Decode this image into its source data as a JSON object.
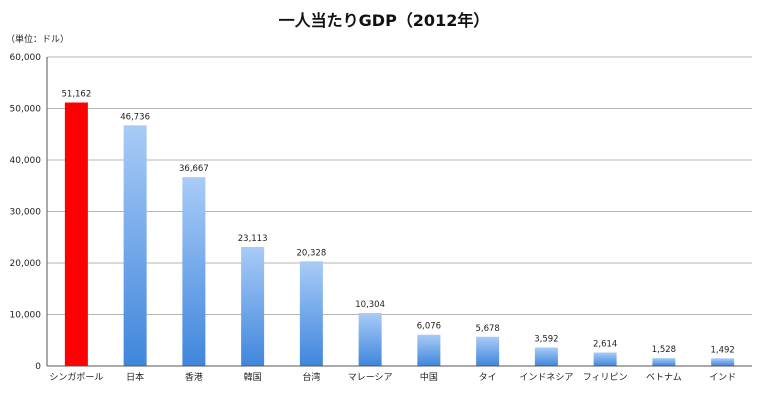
{
  "chart_data": {
    "type": "bar",
    "title": "一人当たりGDP（2012年）",
    "unit_label": "（単位：ドル）",
    "xlabel": "",
    "ylabel": "",
    "ylim": [
      0,
      60000
    ],
    "yticks": [
      0,
      10000,
      20000,
      30000,
      40000,
      50000,
      60000
    ],
    "ytick_labels": [
      "0",
      "10,000",
      "20,000",
      "30,000",
      "40,000",
      "50,000",
      "60,000"
    ],
    "grid": true,
    "categories": [
      "シンガポール",
      "日本",
      "香港",
      "韓国",
      "台湾",
      "マレーシア",
      "中国",
      "タイ",
      "インドネシア",
      "フィリピン",
      "ベトナム",
      "インド"
    ],
    "values": [
      51162,
      46736,
      36667,
      23113,
      20328,
      10304,
      6076,
      5678,
      3592,
      2614,
      1528,
      1492
    ],
    "value_labels": [
      "51,162",
      "46,736",
      "36,667",
      "23,113",
      "20,328",
      "10,304",
      "6,076",
      "5,678",
      "3,592",
      "2,614",
      "1,528",
      "1,492"
    ],
    "highlight_index": 0,
    "colors": {
      "highlight": "#ff0000",
      "bar_top": "#a9cbf7",
      "bar_bottom": "#3f86dc"
    }
  }
}
